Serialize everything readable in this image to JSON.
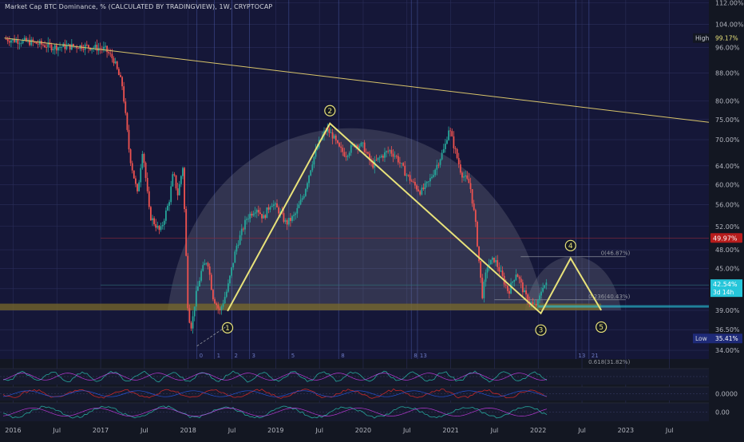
{
  "header": {
    "title": "Market Cap BTC Dominance, % (CALCULATED BY TRADINGVIEW), 1W, CRYPTOCAP"
  },
  "colors": {
    "background": "#131722",
    "up_candle": "#26a69a",
    "down_candle": "#ef5350",
    "pattern_line": "#e8e27a",
    "trend_line": "#d8c46a",
    "dome_fill": "#9aa0aa",
    "support_band": "#7a6a2a",
    "fib_line": "#8a8f9a",
    "last_price_badge": "#26c6da",
    "mid_badge": "#b71c1c"
  },
  "chart_data": {
    "type": "candlestick",
    "symbol": "CRYPTOCAP BTC Dominance",
    "interval": "1W",
    "y_scale": "log",
    "ylim": [
      33.0,
      113.0
    ],
    "y_ticks": [
      "112.00%",
      "104.00%",
      "96.00%",
      "88.00%",
      "80.00%",
      "75.00%",
      "70.00%",
      "64.00%",
      "60.00%",
      "56.00%",
      "52.00%",
      "48.00%",
      "45.00%",
      "42.00%",
      "39.00%",
      "36.50%",
      "34.00%"
    ],
    "y_tick_values": [
      112,
      104,
      96,
      88,
      80,
      75,
      70,
      64,
      60,
      56,
      52,
      48,
      45,
      42,
      39,
      36.5,
      34
    ],
    "x_ticks": [
      "2016",
      "Jul",
      "2017",
      "Jul",
      "2018",
      "Jul",
      "2019",
      "Jul",
      "2020",
      "Jul",
      "2021",
      "Jul",
      "2022",
      "Jul",
      "2023",
      "Jul"
    ],
    "x_tick_values": [
      2016.0,
      2016.5,
      2017.0,
      2017.5,
      2018.0,
      2018.5,
      2019.0,
      2019.5,
      2020.0,
      2020.5,
      2021.0,
      2021.5,
      2022.0,
      2022.5,
      2023.0,
      2023.5
    ],
    "xlim": [
      2015.85,
      2023.95
    ],
    "price_path": [
      [
        2015.9,
        98.9
      ],
      [
        2016.2,
        97.8
      ],
      [
        2016.45,
        96.2
      ],
      [
        2016.8,
        96.5
      ],
      [
        2017.05,
        95.5
      ],
      [
        2017.15,
        92.0
      ],
      [
        2017.25,
        84.0
      ],
      [
        2017.33,
        66.5
      ],
      [
        2017.42,
        58.0
      ],
      [
        2017.48,
        68.0
      ],
      [
        2017.56,
        54.0
      ],
      [
        2017.68,
        51.0
      ],
      [
        2017.78,
        56.5
      ],
      [
        2017.83,
        62.5
      ],
      [
        2017.88,
        58.0
      ],
      [
        2017.94,
        64.0
      ],
      [
        2018.0,
        38.5
      ],
      [
        2018.04,
        36.8
      ],
      [
        2018.08,
        40.5
      ],
      [
        2018.15,
        44.5
      ],
      [
        2018.22,
        46.5
      ],
      [
        2018.28,
        41.0
      ],
      [
        2018.36,
        38.8
      ],
      [
        2018.45,
        42.0
      ],
      [
        2018.55,
        48.5
      ],
      [
        2018.67,
        53.5
      ],
      [
        2018.78,
        55.5
      ],
      [
        2018.86,
        53.5
      ],
      [
        2018.95,
        56.5
      ],
      [
        2019.03,
        55.0
      ],
      [
        2019.12,
        52.5
      ],
      [
        2019.22,
        54.0
      ],
      [
        2019.32,
        58.0
      ],
      [
        2019.42,
        65.0
      ],
      [
        2019.5,
        69.5
      ],
      [
        2019.58,
        72.5
      ],
      [
        2019.65,
        71.0
      ],
      [
        2019.72,
        68.0
      ],
      [
        2019.8,
        66.5
      ],
      [
        2019.9,
        69.0
      ],
      [
        2020.0,
        68.5
      ],
      [
        2020.1,
        64.0
      ],
      [
        2020.2,
        66.0
      ],
      [
        2020.3,
        67.5
      ],
      [
        2020.38,
        66.0
      ],
      [
        2020.48,
        62.5
      ],
      [
        2020.58,
        60.0
      ],
      [
        2020.66,
        58.5
      ],
      [
        2020.75,
        60.5
      ],
      [
        2020.85,
        64.5
      ],
      [
        2020.93,
        68.0
      ],
      [
        2020.98,
        73.0
      ],
      [
        2021.03,
        69.0
      ],
      [
        2021.12,
        62.5
      ],
      [
        2021.22,
        60.0
      ],
      [
        2021.28,
        53.0
      ],
      [
        2021.36,
        41.0
      ],
      [
        2021.42,
        45.5
      ],
      [
        2021.5,
        46.5
      ],
      [
        2021.58,
        44.0
      ],
      [
        2021.66,
        41.5
      ],
      [
        2021.75,
        44.5
      ],
      [
        2021.85,
        41.0
      ],
      [
        2021.95,
        39.5
      ],
      [
        2022.0,
        40.0
      ],
      [
        2022.05,
        42.5
      ],
      [
        2022.1,
        42.54
      ]
    ],
    "pattern_points": [
      {
        "label": "1",
        "x": 2018.45,
        "y": 38.9
      },
      {
        "label": "2",
        "x": 2019.62,
        "y": 74.0
      },
      {
        "label": "3",
        "x": 2022.03,
        "y": 38.6
      },
      {
        "label": "4",
        "x": 2022.37,
        "y": 46.6
      },
      {
        "label": "5",
        "x": 2022.72,
        "y": 39.0
      }
    ],
    "trend_line": {
      "x1": 2015.9,
      "y1": 99.2,
      "x2": 2023.95,
      "y2": 74.3
    },
    "support_band": [
      39.0,
      39.9
    ],
    "fib_levels": [
      {
        "label": "0(46.87%)",
        "value": 46.87
      },
      {
        "label": "0.236(40.43%)",
        "value": 40.43
      },
      {
        "label": "0.618(31.82%)",
        "value": 31.82
      }
    ],
    "highlight_lines": [
      {
        "label": "49.97%",
        "value": 49.97
      },
      {
        "label": "42.54%",
        "value": 42.54
      }
    ],
    "high": {
      "label": "High",
      "value_label": "99.17%",
      "value": 99.17
    },
    "low": {
      "label": "Low",
      "value_label": "35.41%",
      "value": 35.41
    },
    "last_price": {
      "value": 42.54,
      "value_label": "42.54%",
      "countdown": "3d 14h"
    },
    "cycle_markers": [
      {
        "label": "0",
        "x": 2018.1
      },
      {
        "label": "1",
        "x": 2018.3
      },
      {
        "label": "2",
        "x": 2018.5
      },
      {
        "label": "3",
        "x": 2018.7
      },
      {
        "label": "5",
        "x": 2019.15
      },
      {
        "label": "8",
        "x": 2019.72
      },
      {
        "label": "13",
        "x": 2020.62
      },
      {
        "label": "8",
        "x": 2020.55
      },
      {
        "label": "13",
        "x": 2022.43
      },
      {
        "label": "21",
        "x": 2022.58
      }
    ],
    "indicator_panels": [
      {
        "name": "oscillator-1",
        "value_label": ""
      },
      {
        "name": "oscillator-2",
        "value_label": "0.0000"
      },
      {
        "name": "oscillator-3",
        "value_label": "0.00"
      }
    ]
  }
}
